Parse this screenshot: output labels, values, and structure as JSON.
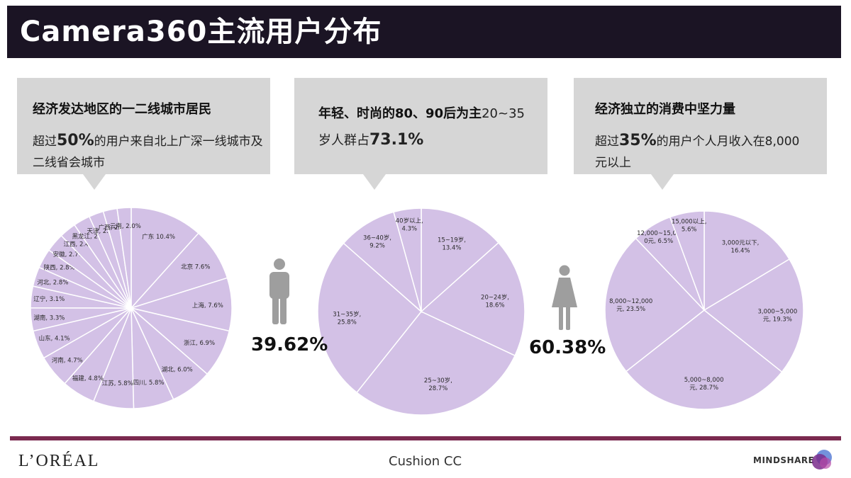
{
  "title": "Camera360主流用户分布",
  "callouts": {
    "city": {
      "head": "经济发达地区的一二线城市居民",
      "body_pre": "超过",
      "body_num": "50%",
      "body_post1": "的用户来自北上广深一线城市及",
      "body_post2": "二线省会城市"
    },
    "age": {
      "head": "年轻、时尚的80、90后为主",
      "head_tail": "20~35",
      "line2_pre": "岁人群占",
      "line2_num": "73.1%"
    },
    "income": {
      "head": "经济独立的消费中坚力量",
      "body_pre": "超过",
      "body_num": "35%",
      "body_post1": "的用户个人月收入在8,000",
      "body_post2": "元以上"
    }
  },
  "gender": {
    "male_pct": "39.62%",
    "female_pct": "60.38%",
    "male_icon": "male-person-icon",
    "female_icon": "female-person-icon"
  },
  "colors": {
    "slice": "#d3c1e6",
    "title_bg": "#1b1424",
    "footer_line": "#7b2a4f",
    "callout_bg": "#d6d6d6"
  },
  "chart_data": [
    {
      "type": "pie",
      "name": "city",
      "slices": [
        {
          "label": "广东 10.4%",
          "value": 10.4
        },
        {
          "label": "北京 7.6%",
          "value": 7.6
        },
        {
          "label": "上海, 7.6%",
          "value": 7.6
        },
        {
          "label": "浙江, 6.9%",
          "value": 6.9
        },
        {
          "label": "湖北, 6.0%",
          "value": 6.0
        },
        {
          "label": "四川, 5.8%",
          "value": 5.8
        },
        {
          "label": "江苏, 5.8%",
          "value": 5.8
        },
        {
          "label": "福建, 4.8%",
          "value": 4.8
        },
        {
          "label": "河南, 4.7%",
          "value": 4.7
        },
        {
          "label": "山东, 4.1%",
          "value": 4.1
        },
        {
          "label": "湖南, 3.3%",
          "value": 3.3
        },
        {
          "label": "辽宁, 3.1%",
          "value": 3.1
        },
        {
          "label": "河北, 2.8%",
          "value": 2.8
        },
        {
          "label": "陕西, 2.8%",
          "value": 2.8
        },
        {
          "label": "安徽, 2.7%",
          "value": 2.7
        },
        {
          "label": "江西, 2.4%",
          "value": 2.4
        },
        {
          "label": "黑龙江, 2.4%",
          "value": 2.4
        },
        {
          "label": "天津, 2.1%",
          "value": 2.1
        },
        {
          "label": "广西, 2.0%",
          "value": 2.0
        },
        {
          "label": "云南, 2.0%",
          "value": 2.0
        }
      ]
    },
    {
      "type": "pie",
      "name": "age",
      "slices": [
        {
          "label": [
            "15~19岁,",
            "13.4%"
          ],
          "value": 13.4
        },
        {
          "label": [
            "20~24岁,",
            "18.6%"
          ],
          "value": 18.6
        },
        {
          "label": [
            "25~30岁,",
            "28.7%"
          ],
          "value": 28.7
        },
        {
          "label": [
            "31~35岁,",
            "25.8%"
          ],
          "value": 25.8
        },
        {
          "label": [
            "36~40岁,",
            "9.2%"
          ],
          "value": 9.2
        },
        {
          "label": [
            "40岁以上,",
            "4.3%"
          ],
          "value": 4.3
        }
      ]
    },
    {
      "type": "pie",
      "name": "income",
      "slices": [
        {
          "label": [
            "3,000元以下,",
            "16.4%"
          ],
          "value": 16.4
        },
        {
          "label": [
            "3,000~5,000",
            "元, 19.3%"
          ],
          "value": 19.3
        },
        {
          "label": [
            "5,000~8,000",
            "元, 28.7%"
          ],
          "value": 28.7
        },
        {
          "label": [
            "8,000~12,000",
            "元, 23.5%"
          ],
          "value": 23.5
        },
        {
          "label": [
            "12,000~15,00",
            "0元, 6.5%"
          ],
          "value": 6.5
        },
        {
          "label": [
            "15,000以上,",
            "5.6%"
          ],
          "value": 5.6
        }
      ]
    }
  ],
  "footer": {
    "left_logo": "L’ORÉAL",
    "center": "Cushion CC",
    "right_logo": "MINDSHARE"
  }
}
